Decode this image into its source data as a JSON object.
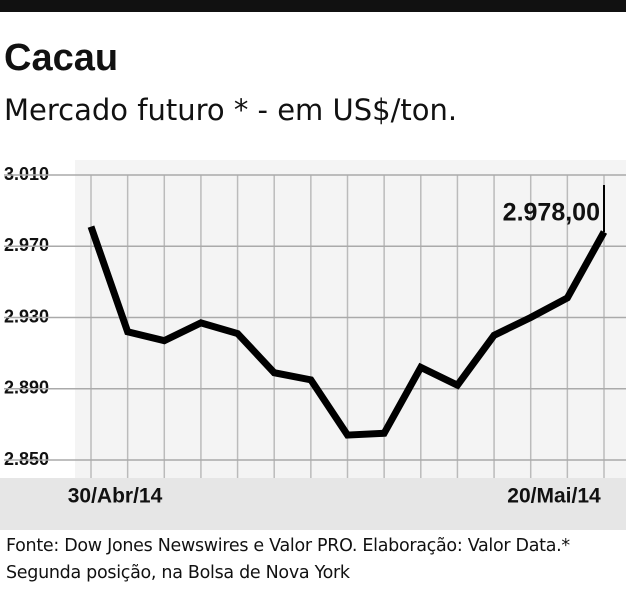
{
  "chart_data": {
    "type": "line",
    "title": "Cacau",
    "subtitle": "Mercado futuro * - em US$/ton.",
    "categories": [
      "30/Abr/14",
      null,
      null,
      null,
      null,
      null,
      null,
      null,
      null,
      null,
      null,
      null,
      null,
      null,
      "20/Mai/14"
    ],
    "values": [
      2981,
      2922,
      2917,
      2927,
      2921,
      2899,
      2895,
      2864,
      2865,
      2902,
      2892,
      2920,
      2930,
      2941,
      2978
    ],
    "value_labels": [
      null,
      null,
      null,
      null,
      null,
      null,
      null,
      null,
      null,
      null,
      null,
      null,
      null,
      null,
      "2.978,00"
    ],
    "color": "#000000",
    "ylim": [
      2850,
      3010
    ],
    "yticks": [
      {
        "value": 2850,
        "label": "2.850"
      },
      {
        "value": 2890,
        "label": "2.890"
      },
      {
        "value": 2930,
        "label": "2.930"
      },
      {
        "value": 2970,
        "label": "2.970"
      },
      {
        "value": 3010,
        "label": "3.010"
      }
    ],
    "grid": true,
    "source": "Fonte: Dow Jones Newswires e Valor PRO. Elaboração: Valor Data.* Segunda posição, na Bolsa de Nova York"
  }
}
